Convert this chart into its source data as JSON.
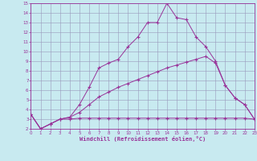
{
  "xlabel": "Windchill (Refroidissement éolien,°C)",
  "xlim": [
    0,
    23
  ],
  "ylim": [
    2,
    15
  ],
  "xticks": [
    0,
    1,
    2,
    3,
    4,
    5,
    6,
    7,
    8,
    9,
    10,
    11,
    12,
    13,
    14,
    15,
    16,
    17,
    18,
    19,
    20,
    21,
    22,
    23
  ],
  "yticks": [
    2,
    3,
    4,
    5,
    6,
    7,
    8,
    9,
    10,
    11,
    12,
    13,
    14,
    15
  ],
  "bg_color": "#c8eaf0",
  "grid_color": "#9999bb",
  "line_color": "#993399",
  "line1_x": [
    0,
    1,
    2,
    3,
    4,
    5,
    6,
    7,
    8,
    9,
    10,
    11,
    12,
    13,
    14,
    15,
    16,
    17,
    18,
    19,
    20,
    21,
    22,
    23
  ],
  "line1_y": [
    3.5,
    2.0,
    2.5,
    3.0,
    3.0,
    3.1,
    3.1,
    3.1,
    3.1,
    3.1,
    3.1,
    3.1,
    3.1,
    3.1,
    3.1,
    3.1,
    3.1,
    3.1,
    3.1,
    3.1,
    3.1,
    3.1,
    3.1,
    3.0
  ],
  "line2_x": [
    0,
    1,
    2,
    3,
    4,
    5,
    6,
    7,
    8,
    9,
    10,
    11,
    12,
    13,
    14,
    15,
    16,
    17,
    18,
    19,
    20,
    21,
    22,
    23
  ],
  "line2_y": [
    3.5,
    2.0,
    2.5,
    3.0,
    3.2,
    3.7,
    4.5,
    5.3,
    5.8,
    6.3,
    6.7,
    7.1,
    7.5,
    7.9,
    8.3,
    8.6,
    8.9,
    9.2,
    9.5,
    8.8,
    6.5,
    5.2,
    4.5,
    3.0
  ],
  "line3_x": [
    0,
    1,
    2,
    3,
    4,
    5,
    6,
    7,
    8,
    9,
    10,
    11,
    12,
    13,
    14,
    15,
    16,
    17,
    18,
    19,
    20,
    21,
    22,
    23
  ],
  "line3_y": [
    3.5,
    2.0,
    2.5,
    3.0,
    3.2,
    4.5,
    6.3,
    8.3,
    8.8,
    9.2,
    10.5,
    11.5,
    13.0,
    13.0,
    15.0,
    13.5,
    13.3,
    11.5,
    10.5,
    9.0,
    6.5,
    5.2,
    4.5,
    3.0
  ]
}
